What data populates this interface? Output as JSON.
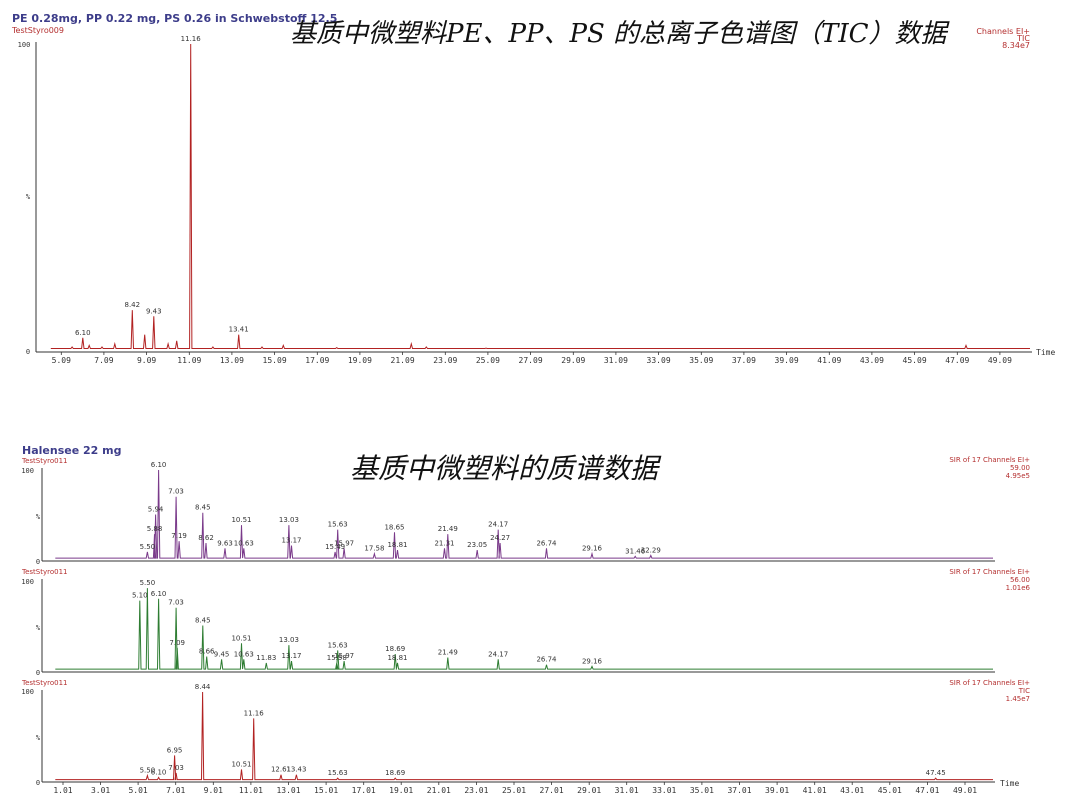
{
  "headings": {
    "top_title": "基质中微塑料PE、PP、PS 的总离子色谱图（TIC）数据",
    "bottom_title": "基质中微塑料的质谱数据"
  },
  "panel1": {
    "sample_line": "PE 0.28mg, PP 0.22 mg, PS 0.26 in Schwebstoff 12.5",
    "file": "TestStyro009",
    "info": [
      "Channels EI+",
      "TIC",
      "8.34e7"
    ],
    "y_ticks": [
      "100",
      "%",
      "0"
    ],
    "x_axis_label": "Time"
  },
  "panel2": {
    "sample_line": "Halensee 22 mg",
    "file": "TestStyro011",
    "info": [
      "SIR of 17 Channels EI+",
      "59.00",
      "4.95e5"
    ],
    "y_ticks": [
      "100",
      "%",
      "0"
    ]
  },
  "panel3": {
    "file": "TestStyro011",
    "info": [
      "SIR of 17 Channels EI+",
      "56.00",
      "1.01e6"
    ],
    "y_ticks": [
      "100",
      "%",
      "0"
    ]
  },
  "panel4": {
    "file": "TestStyro011",
    "info": [
      "SIR of 17 Channels EI+",
      "TIC",
      "1.45e7"
    ],
    "y_ticks": [
      "100",
      "%",
      "0"
    ],
    "x_axis_label": "Time"
  },
  "chart_data": [
    {
      "type": "line",
      "title": "PE 0.28mg, PP 0.22 mg, PS 0.26 in Schwebstoff 12.5",
      "xlabel": "Time",
      "ylabel": "%",
      "xlim": [
        4.0,
        50.5
      ],
      "ylim": [
        0,
        100
      ],
      "color": "#b22222",
      "x_ticks": [
        "5.09",
        "7.09",
        "9.09",
        "11.09",
        "13.09",
        "15.09",
        "17.09",
        "19.09",
        "21.09",
        "23.09",
        "25.09",
        "27.09",
        "29.09",
        "31.09",
        "33.09",
        "35.09",
        "37.09",
        "39.09",
        "41.09",
        "43.09",
        "45.09",
        "47.09",
        "49.09"
      ],
      "peaks": [
        {
          "x": 6.1,
          "y": 4,
          "label": "6.10"
        },
        {
          "x": 8.42,
          "y": 13,
          "label": "8.42"
        },
        {
          "x": 9.43,
          "y": 11,
          "label": "9.43"
        },
        {
          "x": 11.16,
          "y": 100,
          "label": "11.16"
        },
        {
          "x": 13.41,
          "y": 5,
          "label": "13.41"
        }
      ],
      "minor_peaks": [
        {
          "x": 5.6,
          "y": 1
        },
        {
          "x": 6.4,
          "y": 1.5
        },
        {
          "x": 7.0,
          "y": 1
        },
        {
          "x": 7.6,
          "y": 2
        },
        {
          "x": 9.0,
          "y": 5
        },
        {
          "x": 10.1,
          "y": 2
        },
        {
          "x": 10.5,
          "y": 3
        },
        {
          "x": 12.2,
          "y": 1
        },
        {
          "x": 14.5,
          "y": 1
        },
        {
          "x": 15.5,
          "y": 1.5
        },
        {
          "x": 18.0,
          "y": 0.8
        },
        {
          "x": 21.5,
          "y": 2
        },
        {
          "x": 22.2,
          "y": 1
        },
        {
          "x": 25.0,
          "y": 0.6
        },
        {
          "x": 47.5,
          "y": 1.5
        }
      ],
      "baseline": 0.5
    },
    {
      "type": "line",
      "title": "Halensee 22 mg",
      "ylabel": "%",
      "xlim": [
        0.0,
        50.5
      ],
      "ylim": [
        0,
        100
      ],
      "color": "#7a3a8a",
      "peaks": [
        {
          "x": 5.5,
          "y": 8,
          "label": "5.50"
        },
        {
          "x": 5.88,
          "y": 28,
          "label": "5.88"
        },
        {
          "x": 5.94,
          "y": 50,
          "label": "5.94"
        },
        {
          "x": 6.1,
          "y": 100,
          "label": "6.10"
        },
        {
          "x": 7.03,
          "y": 70,
          "label": "7.03"
        },
        {
          "x": 7.19,
          "y": 20,
          "label": "7.19"
        },
        {
          "x": 8.45,
          "y": 52,
          "label": "8.45"
        },
        {
          "x": 8.62,
          "y": 18,
          "label": "8.62"
        },
        {
          "x": 9.63,
          "y": 12,
          "label": "9.63"
        },
        {
          "x": 10.51,
          "y": 38,
          "label": "10.51"
        },
        {
          "x": 10.63,
          "y": 12,
          "label": "10.63"
        },
        {
          "x": 13.03,
          "y": 38,
          "label": "13.03"
        },
        {
          "x": 13.17,
          "y": 15,
          "label": "13.17"
        },
        {
          "x": 15.49,
          "y": 8,
          "label": "15.49"
        },
        {
          "x": 15.63,
          "y": 33,
          "label": "15.63"
        },
        {
          "x": 15.97,
          "y": 12,
          "label": "15.97"
        },
        {
          "x": 17.58,
          "y": 6,
          "label": "17.58"
        },
        {
          "x": 18.65,
          "y": 30,
          "label": "18.65"
        },
        {
          "x": 18.81,
          "y": 10,
          "label": "18.81"
        },
        {
          "x": 21.31,
          "y": 12,
          "label": "21.31"
        },
        {
          "x": 21.49,
          "y": 28,
          "label": "21.49"
        },
        {
          "x": 23.05,
          "y": 10,
          "label": "23.05"
        },
        {
          "x": 24.17,
          "y": 33,
          "label": "24.17"
        },
        {
          "x": 24.27,
          "y": 18,
          "label": "24.27"
        },
        {
          "x": 26.74,
          "y": 12,
          "label": "26.74"
        },
        {
          "x": 29.16,
          "y": 6,
          "label": "29.16"
        },
        {
          "x": 31.46,
          "y": 3,
          "label": "31.46"
        },
        {
          "x": 32.29,
          "y": 4,
          "label": "32.29"
        }
      ],
      "baseline": 1
    },
    {
      "type": "line",
      "ylabel": "%",
      "xlim": [
        0.0,
        50.5
      ],
      "ylim": [
        0,
        100
      ],
      "color": "#2e7d32",
      "peaks": [
        {
          "x": 5.1,
          "y": 78,
          "label": "5.10"
        },
        {
          "x": 5.5,
          "y": 92,
          "label": "5.50"
        },
        {
          "x": 6.1,
          "y": 80,
          "label": "6.10"
        },
        {
          "x": 7.03,
          "y": 70,
          "label": "7.03"
        },
        {
          "x": 7.09,
          "y": 25,
          "label": "7.09"
        },
        {
          "x": 8.45,
          "y": 50,
          "label": "8.45"
        },
        {
          "x": 8.66,
          "y": 15,
          "label": "8.66"
        },
        {
          "x": 9.45,
          "y": 12,
          "label": "9.45"
        },
        {
          "x": 10.51,
          "y": 30,
          "label": "10.51"
        },
        {
          "x": 10.63,
          "y": 12,
          "label": "10.63"
        },
        {
          "x": 11.83,
          "y": 8,
          "label": "11.83"
        },
        {
          "x": 13.03,
          "y": 28,
          "label": "13.03"
        },
        {
          "x": 13.17,
          "y": 10,
          "label": "13.17"
        },
        {
          "x": 15.58,
          "y": 8,
          "label": "15.58"
        },
        {
          "x": 15.63,
          "y": 22,
          "label": "15.63"
        },
        {
          "x": 15.97,
          "y": 10,
          "label": "15.97"
        },
        {
          "x": 18.69,
          "y": 18,
          "label": "18.69"
        },
        {
          "x": 18.81,
          "y": 8,
          "label": "18.81"
        },
        {
          "x": 21.49,
          "y": 14,
          "label": "21.49"
        },
        {
          "x": 24.17,
          "y": 12,
          "label": "24.17"
        },
        {
          "x": 26.74,
          "y": 6,
          "label": "26.74"
        },
        {
          "x": 29.16,
          "y": 4,
          "label": "29.16"
        }
      ],
      "baseline": 1
    },
    {
      "type": "line",
      "xlabel": "Time",
      "ylabel": "%",
      "xlim": [
        0.0,
        50.5
      ],
      "ylim": [
        0,
        100
      ],
      "color": "#b22222",
      "x_ticks": [
        "1.01",
        "3.01",
        "5.01",
        "7.01",
        "9.01",
        "11.01",
        "13.01",
        "15.01",
        "17.01",
        "19.01",
        "21.01",
        "23.01",
        "25.01",
        "27.01",
        "29.01",
        "31.01",
        "33.01",
        "35.01",
        "37.01",
        "39.01",
        "41.01",
        "43.01",
        "45.01",
        "47.01",
        "49.01"
      ],
      "peaks": [
        {
          "x": 5.5,
          "y": 5,
          "label": "5.50"
        },
        {
          "x": 6.1,
          "y": 3,
          "label": "6.10"
        },
        {
          "x": 6.95,
          "y": 28,
          "label": "6.95"
        },
        {
          "x": 7.03,
          "y": 8,
          "label": "7.03"
        },
        {
          "x": 8.44,
          "y": 100,
          "label": "8.44"
        },
        {
          "x": 10.51,
          "y": 12,
          "label": "10.51"
        },
        {
          "x": 11.16,
          "y": 70,
          "label": "11.16"
        },
        {
          "x": 12.61,
          "y": 6,
          "label": "12.61"
        },
        {
          "x": 13.43,
          "y": 6,
          "label": "13.43"
        },
        {
          "x": 15.63,
          "y": 2,
          "label": "15.63"
        },
        {
          "x": 18.69,
          "y": 2,
          "label": "18.69"
        },
        {
          "x": 47.45,
          "y": 2,
          "label": "47.45"
        }
      ],
      "baseline": 0.5
    }
  ]
}
